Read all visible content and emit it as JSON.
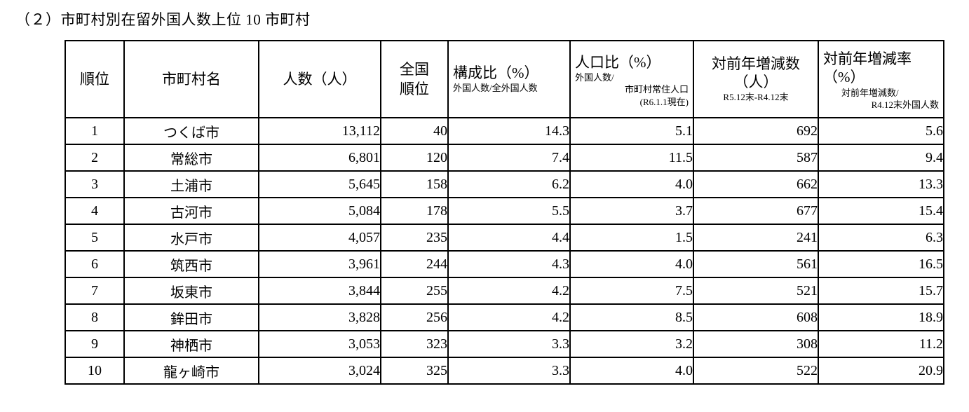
{
  "page_title": "（２）市町村別在留外国人数上位 10 市町村",
  "table": {
    "columns": {
      "rank": {
        "label": "順位"
      },
      "municipality": {
        "label": "市町村名"
      },
      "count": {
        "label": "人数（人）"
      },
      "national_rank": {
        "line1": "全国",
        "line2": "順位"
      },
      "composition": {
        "label": "構成比（%）",
        "sub": "外国人数/全外国人数"
      },
      "population_ratio": {
        "label": "人口比（%）",
        "sub1": "外国人数/",
        "sub2": "市町村常住人口",
        "sub3": "(R6.1.1現在)"
      },
      "yoy_change": {
        "label": "対前年増減数（人）",
        "sub": "R5.12末-R4.12末"
      },
      "yoy_rate": {
        "label": "対前年増減率（%）",
        "sub1": "対前年増減数/",
        "sub2": "R4.12末外国人数"
      }
    },
    "rows": [
      [
        "1",
        "つくば市",
        "13,112",
        "40",
        "14.3",
        "5.1",
        "692",
        "5.6"
      ],
      [
        "2",
        "常総市",
        "6,801",
        "120",
        "7.4",
        "11.5",
        "587",
        "9.4"
      ],
      [
        "3",
        "土浦市",
        "5,645",
        "158",
        "6.2",
        "4.0",
        "662",
        "13.3"
      ],
      [
        "4",
        "古河市",
        "5,084",
        "178",
        "5.5",
        "3.7",
        "677",
        "15.4"
      ],
      [
        "5",
        "水戸市",
        "4,057",
        "235",
        "4.4",
        "1.5",
        "241",
        "6.3"
      ],
      [
        "6",
        "筑西市",
        "3,961",
        "244",
        "4.3",
        "4.0",
        "561",
        "16.5"
      ],
      [
        "7",
        "坂東市",
        "3,844",
        "255",
        "4.2",
        "7.5",
        "521",
        "15.7"
      ],
      [
        "8",
        "鉾田市",
        "3,828",
        "256",
        "4.2",
        "8.5",
        "608",
        "18.9"
      ],
      [
        "9",
        "神栖市",
        "3,053",
        "323",
        "3.3",
        "3.2",
        "308",
        "11.2"
      ],
      [
        "10",
        "龍ヶ崎市",
        "3,024",
        "325",
        "3.3",
        "4.0",
        "522",
        "20.9"
      ]
    ]
  }
}
